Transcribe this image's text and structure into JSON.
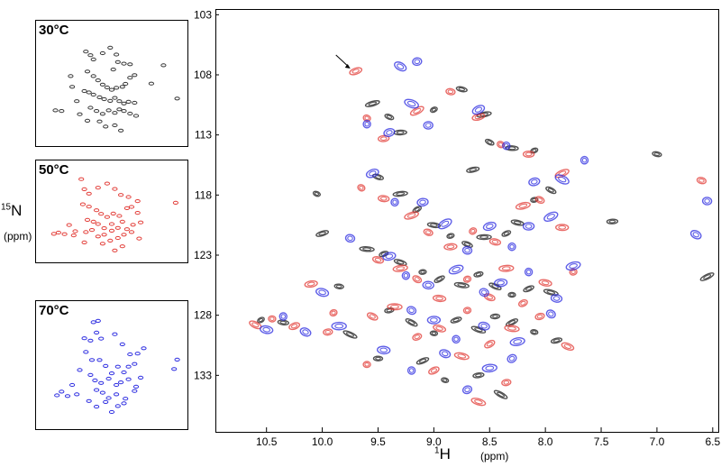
{
  "panels": [
    {
      "label": "30°C",
      "color": "#333333"
    },
    {
      "label": "50°C",
      "color": "#e23b36"
    },
    {
      "label": "70°C",
      "color": "#2a2ae0"
    }
  ],
  "axis": {
    "y_label_sup": "15",
    "y_label_main": "N",
    "y_unit": "(ppm)",
    "x_label_sup": "1",
    "x_label_main": "H",
    "x_unit": "(ppm)"
  },
  "chart_data": {
    "type": "scatter",
    "title": "",
    "xlim": [
      10.95,
      6.45
    ],
    "ylim": [
      102.6,
      137.7
    ],
    "x_ticks": [
      "10.5",
      "10.0",
      "9.5",
      "9.0",
      "8.5",
      "8.0",
      "7.5",
      "7.0",
      "6.5"
    ],
    "y_ticks": [
      "103",
      "108",
      "113",
      "118",
      "123",
      "128",
      "133"
    ],
    "x_tick_values": [
      10.5,
      10.0,
      9.5,
      9.0,
      8.5,
      8.0,
      7.5,
      7.0,
      6.5
    ],
    "y_tick_values": [
      103,
      108,
      113,
      118,
      123,
      128,
      133
    ],
    "annotation": "arrow pointing to peak near 9.7 ppm / 107.7 ppm",
    "series": [
      {
        "color": "#333333",
        "points": [
          [
            10.55,
            128.4
          ],
          [
            10.35,
            128.6
          ],
          [
            9.55,
            110.4
          ],
          [
            9.4,
            111.5
          ],
          [
            9.3,
            112.8
          ],
          [
            9.0,
            110.9
          ],
          [
            8.75,
            109.2
          ],
          [
            8.55,
            111.3
          ],
          [
            8.5,
            113.6
          ],
          [
            8.3,
            114.1
          ],
          [
            8.1,
            114.3
          ],
          [
            9.5,
            116.5
          ],
          [
            9.3,
            117.9
          ],
          [
            9.15,
            119.2
          ],
          [
            9.0,
            120.5
          ],
          [
            8.85,
            121.4
          ],
          [
            8.7,
            122.1
          ],
          [
            8.55,
            121.5
          ],
          [
            8.35,
            121.2
          ],
          [
            8.25,
            120.3
          ],
          [
            8.1,
            118.4
          ],
          [
            7.95,
            117.6
          ],
          [
            9.6,
            122.5
          ],
          [
            9.45,
            122.9
          ],
          [
            9.3,
            123.6
          ],
          [
            9.1,
            124.4
          ],
          [
            8.95,
            125.0
          ],
          [
            8.75,
            125.5
          ],
          [
            8.6,
            124.6
          ],
          [
            8.45,
            125.6
          ],
          [
            8.3,
            126.3
          ],
          [
            8.15,
            125.8
          ],
          [
            7.95,
            126.1
          ],
          [
            9.4,
            127.6
          ],
          [
            9.2,
            128.6
          ],
          [
            9.0,
            129.5
          ],
          [
            8.8,
            128.4
          ],
          [
            8.6,
            129.2
          ],
          [
            8.45,
            128.1
          ],
          [
            8.3,
            128.6
          ],
          [
            8.1,
            129.4
          ],
          [
            7.9,
            130.1
          ],
          [
            9.75,
            129.6
          ],
          [
            9.5,
            131.6
          ],
          [
            9.1,
            131.8
          ],
          [
            8.9,
            133.4
          ],
          [
            8.6,
            133.0
          ],
          [
            8.4,
            134.6
          ],
          [
            9.85,
            125.6
          ],
          [
            10.0,
            121.2
          ],
          [
            10.05,
            117.9
          ],
          [
            7.4,
            120.2
          ],
          [
            6.55,
            124.8
          ],
          [
            7.0,
            114.6
          ],
          [
            8.65,
            115.9
          ]
        ]
      },
      {
        "color": "#e23b36",
        "points": [
          [
            9.7,
            107.7
          ],
          [
            9.6,
            111.6
          ],
          [
            9.45,
            113.3
          ],
          [
            9.15,
            111.0
          ],
          [
            8.85,
            109.4
          ],
          [
            8.6,
            111.5
          ],
          [
            8.4,
            113.8
          ],
          [
            8.15,
            114.6
          ],
          [
            7.85,
            116.2
          ],
          [
            6.6,
            116.8
          ],
          [
            10.1,
            125.4
          ],
          [
            9.65,
            117.4
          ],
          [
            9.45,
            118.3
          ],
          [
            9.2,
            119.7
          ],
          [
            9.05,
            121.1
          ],
          [
            8.85,
            122.3
          ],
          [
            8.65,
            121.0
          ],
          [
            8.45,
            121.9
          ],
          [
            8.2,
            118.9
          ],
          [
            8.05,
            118.4
          ],
          [
            7.85,
            120.7
          ],
          [
            9.9,
            127.8
          ],
          [
            9.5,
            123.4
          ],
          [
            9.3,
            124.1
          ],
          [
            9.15,
            125.0
          ],
          [
            8.95,
            126.6
          ],
          [
            8.7,
            125.0
          ],
          [
            8.5,
            126.5
          ],
          [
            8.35,
            124.1
          ],
          [
            8.2,
            127.0
          ],
          [
            8.0,
            125.3
          ],
          [
            7.75,
            124.4
          ],
          [
            9.55,
            128.1
          ],
          [
            9.35,
            127.3
          ],
          [
            9.15,
            129.8
          ],
          [
            8.95,
            129.1
          ],
          [
            8.7,
            127.6
          ],
          [
            8.5,
            130.4
          ],
          [
            8.3,
            129.1
          ],
          [
            8.05,
            128.1
          ],
          [
            7.8,
            130.6
          ],
          [
            9.6,
            132.1
          ],
          [
            9.0,
            132.6
          ],
          [
            8.75,
            131.4
          ],
          [
            8.35,
            133.6
          ],
          [
            10.6,
            128.8
          ],
          [
            10.45,
            128.3
          ],
          [
            10.25,
            128.9
          ],
          [
            8.6,
            135.2
          ],
          [
            9.95,
            129.4
          ]
        ]
      },
      {
        "color": "#2a2ae0",
        "points": [
          [
            9.15,
            106.9
          ],
          [
            9.3,
            107.3
          ],
          [
            9.6,
            112.1
          ],
          [
            9.4,
            112.8
          ],
          [
            9.2,
            110.4
          ],
          [
            9.05,
            112.2
          ],
          [
            8.6,
            110.9
          ],
          [
            8.35,
            113.9
          ],
          [
            8.1,
            116.9
          ],
          [
            7.85,
            116.7
          ],
          [
            6.55,
            118.5
          ],
          [
            9.55,
            116.2
          ],
          [
            9.35,
            118.6
          ],
          [
            9.1,
            118.6
          ],
          [
            8.9,
            120.4
          ],
          [
            8.7,
            122.6
          ],
          [
            8.5,
            120.6
          ],
          [
            8.3,
            122.3
          ],
          [
            8.15,
            120.6
          ],
          [
            7.95,
            119.8
          ],
          [
            9.75,
            121.6
          ],
          [
            9.4,
            123.1
          ],
          [
            9.25,
            124.7
          ],
          [
            9.05,
            125.5
          ],
          [
            8.8,
            124.2
          ],
          [
            8.55,
            126.1
          ],
          [
            8.4,
            125.3
          ],
          [
            8.15,
            124.4
          ],
          [
            7.9,
            126.6
          ],
          [
            7.75,
            123.9
          ],
          [
            9.2,
            127.6
          ],
          [
            9.0,
            128.4
          ],
          [
            8.8,
            130.0
          ],
          [
            8.55,
            128.9
          ],
          [
            8.25,
            130.2
          ],
          [
            7.95,
            127.9
          ],
          [
            9.45,
            130.9
          ],
          [
            9.2,
            132.6
          ],
          [
            8.9,
            131.2
          ],
          [
            8.5,
            132.4
          ],
          [
            8.3,
            131.6
          ],
          [
            10.5,
            129.2
          ],
          [
            10.35,
            128.1
          ],
          [
            10.15,
            129.4
          ],
          [
            9.85,
            128.9
          ],
          [
            8.7,
            134.2
          ],
          [
            10.0,
            126.1
          ],
          [
            7.65,
            115.1
          ],
          [
            6.65,
            121.3
          ]
        ]
      }
    ]
  }
}
